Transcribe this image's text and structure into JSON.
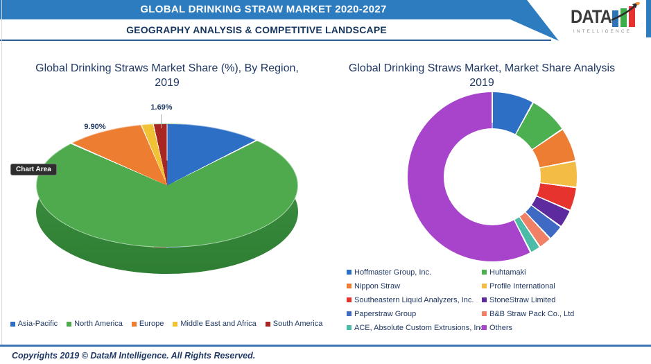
{
  "header": {
    "title": "GLOBAL DRINKING STRAW MARKET 2020-2027",
    "subtitle": "GEOGRAPHY ANALYSIS & COMPETITIVE LANDSCAPE",
    "banner_color": "#2e7cc0",
    "logo": {
      "word": "DATA",
      "tagline": "INTELLIGENCE",
      "bar_colors": [
        "#2d74b9",
        "#3cae47",
        "#e8302f"
      ],
      "arrow_color": "#2b2b2b",
      "spark_color": "#f5953b"
    }
  },
  "tooltip": {
    "label": "Chart Area"
  },
  "chart_data": [
    {
      "type": "pie",
      "style": "3d-pie",
      "title": "Global Drinking Straws Market Share (%), By Region, 2019",
      "legend_position": "bottom",
      "categories": [
        "Asia-Pacific",
        "North America",
        "Europe",
        "Middle East and Africa",
        "South America"
      ],
      "values": [
        12.0,
        74.91,
        9.9,
        1.5,
        1.69
      ],
      "colors": [
        "#2d6fc4",
        "#4faa4e",
        "#ed7d31",
        "#f2c236",
        "#a92723"
      ],
      "side_color": "#3f9243",
      "datalabels": {
        "europe": "9.90%",
        "south_america": "1.69%"
      }
    },
    {
      "type": "pie",
      "style": "donut",
      "title": "Global Drinking Straws Market, Market Share Analysis 2019",
      "legend_position": "bottom",
      "categories": [
        "Hoffmaster Group, Inc.",
        "Huhtamaki",
        "Nippon Straw",
        "Profile International",
        "Southeastern Liquid Analyzers, Inc.",
        "StoneStraw Limited",
        "Paperstraw Group",
        "B&B Straw Pack Co., Ltd",
        "ACE, Absolute Custom Extrusions, Inc.",
        "Others"
      ],
      "values": [
        8,
        7.5,
        6.5,
        5,
        4.5,
        3.5,
        3,
        2.5,
        2,
        57.5
      ],
      "colors": [
        "#2d6fc4",
        "#4caf50",
        "#ed7d33",
        "#f3bc45",
        "#e6332e",
        "#5d2b9d",
        "#3f6ac4",
        "#f08166",
        "#4cbca8",
        "#a843cb"
      ]
    }
  ],
  "footer": {
    "copyright": "Copyrights 2019 © DataM Intelligence. All Rights Reserved.",
    "bar_colors": [
      "#5cb53a",
      "#3274b5",
      "#e23835"
    ]
  }
}
